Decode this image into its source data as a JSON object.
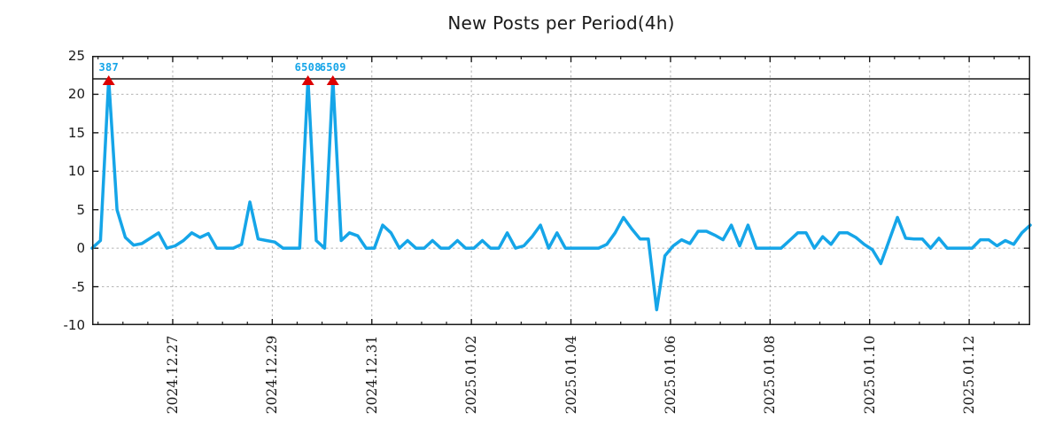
{
  "title": "New Posts per Period(4h)",
  "chart_data": {
    "type": "line",
    "title": "New Posts per Period(4h)",
    "period": "4h",
    "ylim": [
      -10,
      25
    ],
    "y_ticks": [
      25,
      20,
      15,
      10,
      5,
      0,
      -5,
      -10
    ],
    "x_tick_labels": [
      "2024.12.27",
      "2024.12.29",
      "2024.12.31",
      "2025.01.02",
      "2025.01.04",
      "2025.01.06",
      "2025.01.08",
      "2025.01.10",
      "2025.01.12"
    ],
    "x_tick_first_fraction": 0.0859,
    "x_tick_step_fraction": 0.10613,
    "minor_x_ticks_per_major": 4,
    "grid": true,
    "cap_line_y": 22,
    "line_color": "#15a5e8",
    "cap_line_color": "#1a1a1a",
    "marker": "triangle-up",
    "marker_color": "#dd0000",
    "annotation_color": "#15a5e8",
    "grid_color": "#b3b3b3",
    "frame_color": "#1a1a1a",
    "values": [
      0,
      1,
      22,
      5,
      1.4,
      0.4,
      0.6,
      1.3,
      2,
      0,
      0.3,
      1,
      2,
      1.4,
      1.9,
      0,
      0,
      0,
      0.5,
      6,
      1.2,
      1,
      0.8,
      0,
      0,
      0,
      22,
      1,
      0,
      22,
      1,
      2,
      1.6,
      0,
      0,
      3,
      2,
      0,
      1,
      0,
      0,
      1,
      0,
      0,
      1,
      0,
      0,
      1,
      0,
      0,
      2,
      0,
      0.3,
      1.5,
      3,
      0,
      2,
      0,
      0,
      0,
      0,
      0,
      0.5,
      2,
      4,
      2.5,
      1.2,
      1.2,
      -8,
      -1,
      0.3,
      1.1,
      0.6,
      2.2,
      2.2,
      1.7,
      1.1,
      3,
      0.3,
      3,
      0,
      0,
      0,
      0,
      1,
      2,
      2,
      0,
      1.5,
      0.5,
      2,
      2,
      1.4,
      0.5,
      -0.2,
      -2,
      1,
      4,
      1.3,
      1.2,
      1.2,
      0,
      1.3,
      0,
      0,
      0,
      0,
      1.1,
      1.1,
      0.3,
      1,
      0.5,
      2,
      3
    ],
    "annotations": [
      {
        "label": "387",
        "point_index": 2,
        "value_capped_at": 22
      },
      {
        "label": "6508",
        "point_index": 26,
        "value_capped_at": 22
      },
      {
        "label": "6509",
        "point_index": 29,
        "value_capped_at": 22
      }
    ]
  }
}
